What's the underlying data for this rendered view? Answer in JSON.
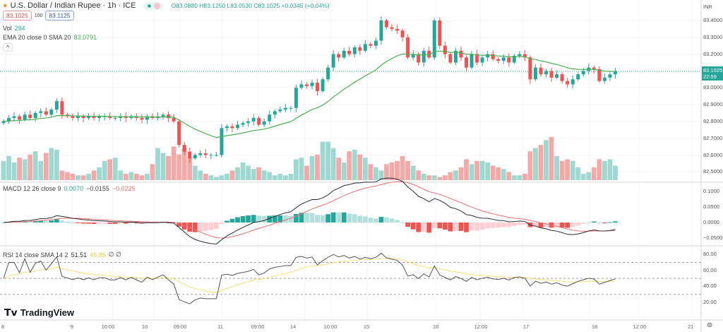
{
  "header": {
    "symbol_title": "U.S. Dollar / Indian Rupee · 1h · ICE",
    "ohlc": "O83.0880 H83.1250 L83.0530 C83.1025 +0.0345 (+0.04%)",
    "bid": "83.1025",
    "spread": "100",
    "ask": "83.1125"
  },
  "indicators": {
    "vol_label": "Vol",
    "vol_value": "294",
    "ema_label": "EMA 20 close 0 SMA 20",
    "ema_value": "83.0791",
    "macd_label": "MACD 12 26 close 9",
    "macd_v1": "0.0070",
    "macd_v2": "−0.0155",
    "macd_v3": "−0.0225",
    "rsi_label": "RSI 14 close SMA 14 2",
    "rsi_value": "51.51",
    "rsi_sma": "46.85",
    "rsi_extra": "∅ ∅",
    "collapse": "^"
  },
  "price_axis": {
    "currency": "INR",
    "labels": [
      "83.4000",
      "83.3000",
      "83.2000",
      "83.0000",
      "82.9000",
      "82.8000",
      "82.7000",
      "82.6000",
      "82.5000"
    ],
    "last_price": "83.1025",
    "countdown": "22:59",
    "macd_labels": [
      "0.1000",
      "0.0500",
      "0.0000",
      "−0.0500"
    ],
    "rsi_labels": [
      "80.00",
      "60.00",
      "40.00",
      "20.00"
    ]
  },
  "time_axis": [
    "8",
    "9",
    "10:00",
    "10",
    "09:00",
    "11",
    "09:00",
    "14",
    "10:00",
    "15",
    "16",
    "12:00",
    "17",
    "18",
    "12:00",
    "21"
  ],
  "logo": "TradingView",
  "colors": {
    "up": "#26a69a",
    "down": "#ef5350",
    "ema": "#4caf50",
    "macd": "#2a2e39",
    "signal": "#e57373",
    "rsi": "#555",
    "rsi_sma": "#f5e07a"
  },
  "chart_data": {
    "type": "candlestick",
    "price_range": [
      82.45,
      83.45
    ],
    "closes": [
      82.8,
      82.82,
      82.83,
      82.81,
      82.84,
      82.82,
      82.85,
      82.86,
      82.84,
      82.87,
      82.92,
      82.84,
      82.83,
      82.82,
      82.83,
      82.82,
      82.83,
      82.82,
      82.83,
      82.83,
      82.82,
      82.82,
      82.83,
      82.82,
      82.83,
      82.82,
      82.81,
      82.83,
      82.82,
      82.83,
      82.84,
      82.82,
      82.8,
      82.66,
      82.62,
      82.58,
      82.6,
      82.61,
      82.6,
      82.6,
      82.6,
      82.76,
      82.77,
      82.76,
      82.78,
      82.79,
      82.8,
      82.82,
      82.78,
      82.8,
      82.84,
      82.86,
      82.87,
      82.88,
      82.88,
      83.0,
      83.02,
      83.01,
      83.03,
      82.98,
      83.05,
      83.12,
      83.2,
      83.18,
      83.22,
      83.2,
      83.24,
      83.22,
      83.26,
      83.25,
      83.28,
      83.4,
      83.36,
      83.35,
      83.34,
      83.3,
      83.18,
      83.2,
      83.15,
      83.22,
      83.18,
      83.4,
      83.25,
      83.2,
      83.15,
      83.22,
      83.18,
      83.12,
      83.2,
      83.15,
      83.18,
      83.2,
      83.17,
      83.16,
      83.18,
      83.15,
      83.19,
      83.2,
      83.18,
      83.05,
      83.12,
      83.08,
      83.1,
      83.06,
      83.08,
      83.04,
      83.02,
      83.05,
      83.08,
      83.1,
      83.12,
      83.11,
      83.04,
      83.06,
      83.08,
      83.1
    ],
    "volumes": [
      120,
      150,
      110,
      140,
      130,
      160,
      180,
      120,
      170,
      200,
      190,
      60,
      50,
      40,
      30,
      30,
      40,
      60,
      80,
      120,
      130,
      140,
      60,
      40,
      50,
      40,
      30,
      40,
      100,
      200,
      170,
      150,
      210,
      160,
      200,
      140,
      90,
      60,
      40,
      30,
      20,
      30,
      40,
      60,
      80,
      110,
      90,
      70,
      80,
      60,
      50,
      30,
      40,
      30,
      40,
      130,
      140,
      90,
      150,
      160,
      240,
      240,
      200,
      140,
      110,
      180,
      190,
      160,
      140,
      100,
      80,
      60,
      100,
      110,
      120,
      150,
      120,
      90,
      60,
      40,
      30,
      30,
      20,
      30,
      50,
      60,
      80,
      130,
      100,
      120,
      120,
      110,
      90,
      80,
      70,
      50,
      30,
      30,
      40,
      180,
      200,
      220,
      250,
      270,
      150,
      120,
      130,
      120,
      80,
      40,
      50,
      80,
      130,
      120,
      130,
      90
    ]
  }
}
